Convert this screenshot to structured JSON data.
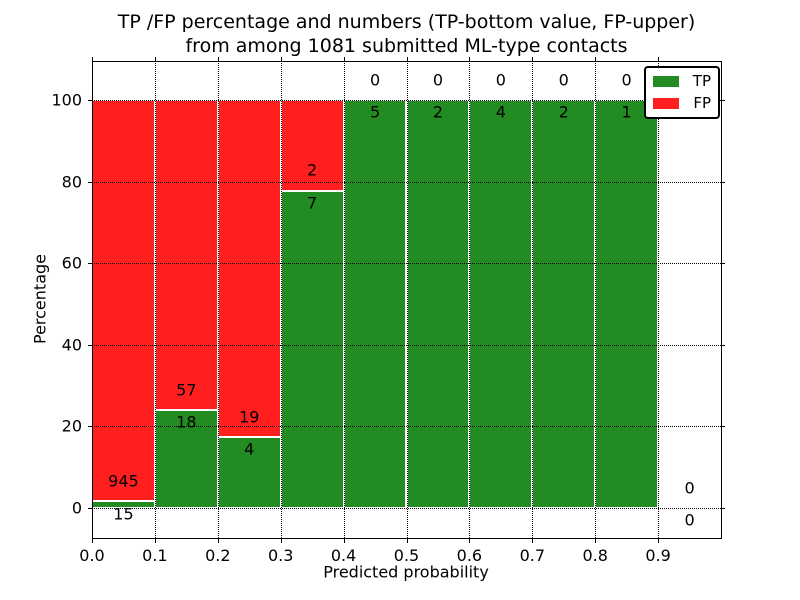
{
  "chart_data": {
    "type": "bar",
    "stacked": true,
    "title_line1": "TP /FP percentage and numbers (TP-bottom value, FP-upper)",
    "title_line2": "from among 1081 submitted ML-type contacts",
    "xlabel": "Predicted probability",
    "ylabel": "Percentage",
    "total_submitted": 1081,
    "xlim": [
      0.0,
      1.0
    ],
    "ylim": [
      -7.5,
      110
    ],
    "grid": true,
    "legend_position": "upper right",
    "legend": [
      {
        "label": "TP",
        "color": "#228B22"
      },
      {
        "label": "FP",
        "color": "#FF1F1F"
      }
    ],
    "x_ticks": [
      {
        "value": 0.0,
        "label": "0.0"
      },
      {
        "value": 0.1,
        "label": "0.1"
      },
      {
        "value": 0.2,
        "label": "0.2"
      },
      {
        "value": 0.3,
        "label": "0.3"
      },
      {
        "value": 0.4,
        "label": "0.4"
      },
      {
        "value": 0.5,
        "label": "0.5"
      },
      {
        "value": 0.6,
        "label": "0.6"
      },
      {
        "value": 0.7,
        "label": "0.7"
      },
      {
        "value": 0.8,
        "label": "0.8"
      },
      {
        "value": 0.9,
        "label": "0.9"
      }
    ],
    "y_ticks": [
      {
        "value": 0,
        "label": "0"
      },
      {
        "value": 20,
        "label": "20"
      },
      {
        "value": 40,
        "label": "40"
      },
      {
        "value": 60,
        "label": "60"
      },
      {
        "value": 80,
        "label": "80"
      },
      {
        "value": 100,
        "label": "100"
      }
    ],
    "bins": [
      {
        "range": [
          0.0,
          0.1
        ],
        "tp": 15,
        "fp": 945,
        "tp_pct": 1.6
      },
      {
        "range": [
          0.1,
          0.2
        ],
        "tp": 18,
        "fp": 57,
        "tp_pct": 24.0
      },
      {
        "range": [
          0.2,
          0.3
        ],
        "tp": 4,
        "fp": 19,
        "tp_pct": 17.4
      },
      {
        "range": [
          0.3,
          0.4
        ],
        "tp": 7,
        "fp": 2,
        "tp_pct": 77.8
      },
      {
        "range": [
          0.4,
          0.5
        ],
        "tp": 5,
        "fp": 0,
        "tp_pct": 100
      },
      {
        "range": [
          0.5,
          0.6
        ],
        "tp": 2,
        "fp": 0,
        "tp_pct": 100
      },
      {
        "range": [
          0.6,
          0.7
        ],
        "tp": 4,
        "fp": 0,
        "tp_pct": 100
      },
      {
        "range": [
          0.7,
          0.8
        ],
        "tp": 2,
        "fp": 0,
        "tp_pct": 100
      },
      {
        "range": [
          0.8,
          0.9
        ],
        "tp": 1,
        "fp": 0,
        "tp_pct": 100
      },
      {
        "range": [
          0.9,
          1.0
        ],
        "tp": 0,
        "fp": 0,
        "tp_pct": null
      }
    ]
  }
}
